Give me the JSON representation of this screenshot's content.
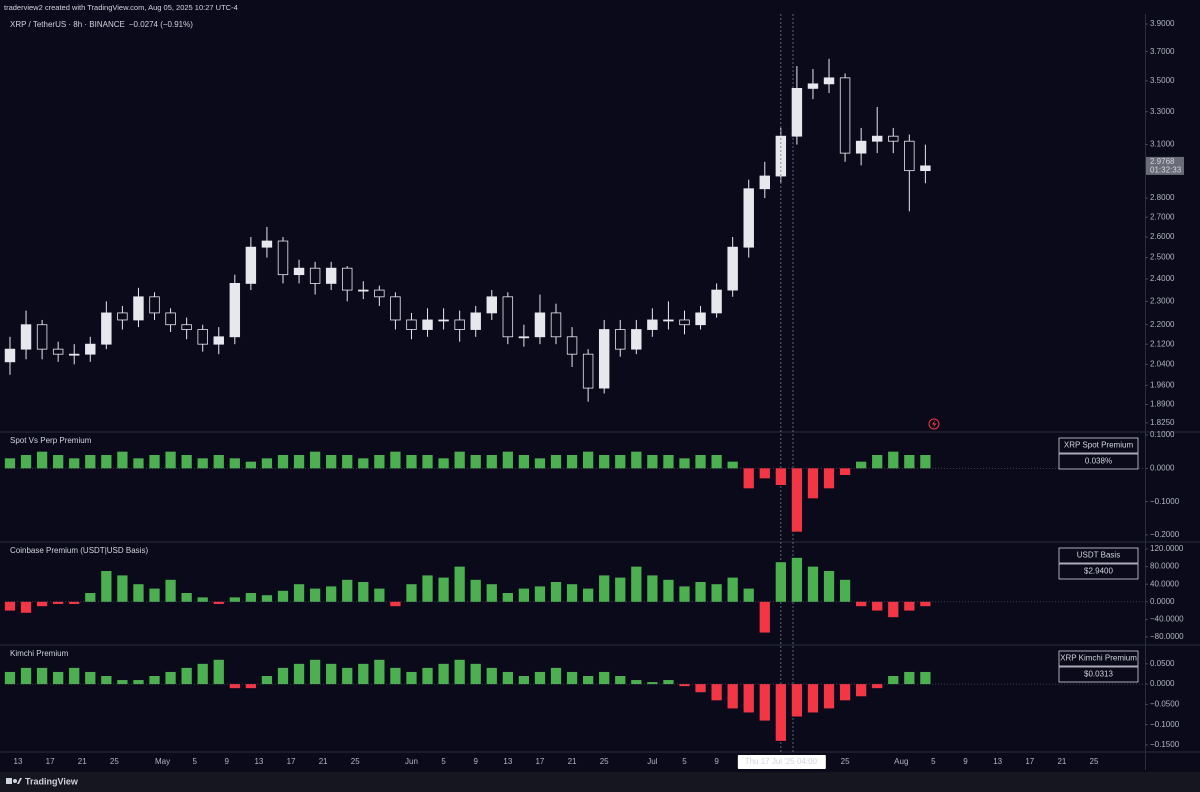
{
  "header": "traderview2 created with TradingView.com, Aug 05, 2025 10:27 UTC-4",
  "footer": "TradingView",
  "chart_data": [
    {
      "type": "candlestick",
      "title": "XRP / TetherUS · 8h · BINANCE",
      "subtitle": "−0.0274 (−0.91%)",
      "color": "#e6e8ee",
      "log": true,
      "last_price": 2.9768,
      "countdown": "01:32:33",
      "crosshair": {
        "value": 95,
        "label": "Thu 17 Jul '25  04:00"
      },
      "xlim": [
        -1.62,
        140.35
      ],
      "xticks": [
        {
          "value": 0,
          "label": "13"
        },
        {
          "value": 4,
          "label": "17"
        },
        {
          "value": 8,
          "label": "21"
        },
        {
          "value": 12,
          "label": "25"
        },
        {
          "value": 18,
          "label": "May"
        },
        {
          "value": 22,
          "label": "5"
        },
        {
          "value": 26,
          "label": "9"
        },
        {
          "value": 30,
          "label": "13"
        },
        {
          "value": 34,
          "label": "17"
        },
        {
          "value": 38,
          "label": "21"
        },
        {
          "value": 42,
          "label": "25"
        },
        {
          "value": 49,
          "label": "Jun"
        },
        {
          "value": 53,
          "label": "5"
        },
        {
          "value": 57,
          "label": "9"
        },
        {
          "value": 61,
          "label": "13"
        },
        {
          "value": 65,
          "label": "17"
        },
        {
          "value": 69,
          "label": "21"
        },
        {
          "value": 73,
          "label": "25"
        },
        {
          "value": 79,
          "label": "Jul"
        },
        {
          "value": 83,
          "label": "5"
        },
        {
          "value": 87,
          "label": "9"
        },
        {
          "value": 103,
          "label": "25"
        },
        {
          "value": 110,
          "label": "Aug"
        },
        {
          "value": 114,
          "label": "5"
        },
        {
          "value": 118,
          "label": "9"
        },
        {
          "value": 122,
          "label": "13"
        },
        {
          "value": 126,
          "label": "17"
        },
        {
          "value": 130,
          "label": "21"
        },
        {
          "value": 134,
          "label": "25"
        }
      ],
      "ylim": [
        1.797,
        3.975
      ],
      "yticks": [
        {
          "value": 3.9,
          "label": "3.9000"
        },
        {
          "value": 3.7,
          "label": "3.7000"
        },
        {
          "value": 3.5,
          "label": "3.5000"
        },
        {
          "value": 3.3,
          "label": "3.3000"
        },
        {
          "value": 3.1,
          "label": "3.1000"
        },
        {
          "value": 2.8,
          "label": "2.8000"
        },
        {
          "value": 2.7,
          "label": "2.7000"
        },
        {
          "value": 2.6,
          "label": "2.6000"
        },
        {
          "value": 2.5,
          "label": "2.5000"
        },
        {
          "value": 2.4,
          "label": "2.4000"
        },
        {
          "value": 2.3,
          "label": "2.3000"
        },
        {
          "value": 2.2,
          "label": "2.2000"
        },
        {
          "value": 2.12,
          "label": "2.1200"
        },
        {
          "value": 2.04,
          "label": "2.0400"
        },
        {
          "value": 1.96,
          "label": "1.9600"
        },
        {
          "value": 1.89,
          "label": "1.8900"
        },
        {
          "value": 1.825,
          "label": "1.8250"
        }
      ],
      "x": [
        -1,
        1,
        3,
        5,
        7,
        9,
        11,
        13,
        15,
        17,
        19,
        21,
        23,
        25,
        27,
        29,
        31,
        33,
        35,
        37,
        39,
        41,
        43,
        45,
        47,
        49,
        51,
        53,
        55,
        57,
        59,
        61,
        63,
        65,
        67,
        69,
        71,
        73,
        75,
        77,
        79,
        81,
        83,
        85,
        87,
        89,
        91,
        93,
        95,
        97,
        99,
        101,
        103,
        105,
        107,
        109,
        111,
        113
      ],
      "open": [
        2.05,
        2.1,
        2.2,
        2.1,
        2.08,
        2.08,
        2.12,
        2.25,
        2.22,
        2.32,
        2.25,
        2.2,
        2.18,
        2.12,
        2.15,
        2.38,
        2.55,
        2.58,
        2.42,
        2.45,
        2.38,
        2.45,
        2.35,
        2.35,
        2.32,
        2.22,
        2.18,
        2.22,
        2.22,
        2.18,
        2.25,
        2.32,
        2.15,
        2.15,
        2.25,
        2.15,
        2.08,
        1.95,
        2.18,
        2.1,
        2.18,
        2.22,
        2.22,
        2.2,
        2.25,
        2.35,
        2.55,
        2.85,
        2.92,
        3.15,
        3.45,
        3.48,
        3.52,
        3.05,
        3.12,
        3.15,
        3.12,
        2.95
      ],
      "high": [
        2.15,
        2.26,
        2.22,
        2.13,
        2.12,
        2.15,
        2.3,
        2.28,
        2.36,
        2.34,
        2.27,
        2.23,
        2.2,
        2.19,
        2.42,
        2.6,
        2.65,
        2.6,
        2.49,
        2.48,
        2.48,
        2.46,
        2.39,
        2.37,
        2.34,
        2.25,
        2.27,
        2.27,
        2.26,
        2.28,
        2.35,
        2.34,
        2.2,
        2.33,
        2.29,
        2.19,
        2.1,
        2.22,
        2.22,
        2.22,
        2.27,
        2.3,
        2.26,
        2.28,
        2.38,
        2.6,
        2.9,
        3.0,
        3.2,
        3.6,
        3.58,
        3.65,
        3.55,
        3.2,
        3.33,
        3.2,
        3.16,
        3.1
      ],
      "low": [
        2.0,
        2.06,
        2.06,
        2.05,
        2.04,
        2.05,
        2.1,
        2.18,
        2.19,
        2.22,
        2.17,
        2.14,
        2.09,
        2.08,
        2.12,
        2.35,
        2.5,
        2.38,
        2.38,
        2.33,
        2.35,
        2.3,
        2.31,
        2.28,
        2.18,
        2.14,
        2.15,
        2.18,
        2.13,
        2.15,
        2.22,
        2.12,
        2.11,
        2.12,
        2.12,
        2.03,
        1.9,
        1.93,
        2.07,
        2.08,
        2.15,
        2.18,
        2.16,
        2.18,
        2.23,
        2.32,
        2.5,
        2.8,
        2.88,
        3.1,
        3.38,
        3.42,
        3.0,
        2.98,
        3.05,
        3.05,
        2.73,
        2.88
      ],
      "close": [
        2.1,
        2.2,
        2.1,
        2.08,
        2.08,
        2.12,
        2.25,
        2.22,
        2.32,
        2.25,
        2.2,
        2.18,
        2.12,
        2.15,
        2.38,
        2.55,
        2.58,
        2.42,
        2.45,
        2.38,
        2.45,
        2.35,
        2.35,
        2.32,
        2.22,
        2.18,
        2.22,
        2.22,
        2.18,
        2.25,
        2.32,
        2.15,
        2.15,
        2.25,
        2.15,
        2.08,
        1.95,
        2.18,
        2.1,
        2.18,
        2.22,
        2.22,
        2.2,
        2.25,
        2.35,
        2.55,
        2.85,
        2.92,
        3.15,
        3.45,
        3.48,
        3.52,
        3.05,
        3.12,
        3.15,
        3.12,
        2.95,
        2.9768
      ]
    },
    {
      "type": "column",
      "title": "Spot Vs Perp Premium",
      "badge_title": "XRP Spot Premium",
      "badge_value": "0.038%",
      "up_color": "#4caf50",
      "down_color": "#f23645",
      "ylim": [
        -0.218,
        0.106
      ],
      "yticks": [
        {
          "value": 0.1,
          "label": "0.1000"
        },
        {
          "value": 0,
          "label": "0.0000"
        },
        {
          "value": -0.1,
          "label": "−0.1000"
        },
        {
          "value": -0.2,
          "label": "−0.2000"
        }
      ],
      "values": [
        0.03,
        0.04,
        0.05,
        0.04,
        0.03,
        0.04,
        0.04,
        0.05,
        0.03,
        0.04,
        0.05,
        0.04,
        0.03,
        0.04,
        0.03,
        0.02,
        0.03,
        0.04,
        0.04,
        0.05,
        0.04,
        0.04,
        0.03,
        0.04,
        0.05,
        0.04,
        0.04,
        0.03,
        0.05,
        0.04,
        0.04,
        0.05,
        0.04,
        0.03,
        0.04,
        0.04,
        0.05,
        0.04,
        0.04,
        0.05,
        0.04,
        0.04,
        0.03,
        0.04,
        0.04,
        0.02,
        -0.06,
        -0.03,
        -0.05,
        -0.19,
        -0.09,
        -0.06,
        -0.02,
        0.02,
        0.04,
        0.05,
        0.04,
        0.04
      ]
    },
    {
      "type": "column",
      "title": "Coinbase Premium (USDT|USD Basis)",
      "badge_title": "USDT Basis",
      "badge_value": "$2.9400",
      "up_color": "#4caf50",
      "down_color": "#f23645",
      "ylim": [
        -96,
        133.7
      ],
      "yticks": [
        {
          "value": 120,
          "label": "120.0000"
        },
        {
          "value": 80,
          "label": "80.0000"
        },
        {
          "value": 40,
          "label": "40.0000"
        },
        {
          "value": 0,
          "label": "0.0000"
        },
        {
          "value": -40,
          "label": "−40.0000"
        },
        {
          "value": -80,
          "label": "−80.0000"
        }
      ],
      "values": [
        -20,
        -25,
        -10,
        -5,
        -5,
        20,
        70,
        60,
        40,
        30,
        50,
        20,
        10,
        -5,
        10,
        20,
        15,
        25,
        40,
        30,
        35,
        50,
        45,
        30,
        -10,
        40,
        60,
        55,
        80,
        50,
        40,
        20,
        30,
        35,
        45,
        40,
        30,
        60,
        55,
        80,
        60,
        50,
        35,
        45,
        40,
        55,
        30,
        -70,
        90,
        100,
        80,
        70,
        50,
        -10,
        -20,
        -35,
        -20,
        -10
      ]
    },
    {
      "type": "column",
      "title": "Kimchi Premium",
      "badge_title": "XRP Kimchi Premium",
      "badge_value": "$0.0313",
      "up_color": "#4caf50",
      "down_color": "#f23645",
      "ylim": [
        -0.165,
        0.094
      ],
      "yticks": [
        {
          "value": 0.05,
          "label": "0.0500"
        },
        {
          "value": 0,
          "label": "0.0000"
        },
        {
          "value": -0.05,
          "label": "−0.0500"
        },
        {
          "value": -0.1,
          "label": "−0.1000"
        },
        {
          "value": -0.15,
          "label": "−0.1500"
        }
      ],
      "values": [
        0.03,
        0.04,
        0.04,
        0.03,
        0.04,
        0.03,
        0.02,
        0.01,
        0.01,
        0.02,
        0.03,
        0.04,
        0.05,
        0.06,
        -0.01,
        -0.01,
        0.02,
        0.04,
        0.05,
        0.06,
        0.05,
        0.04,
        0.05,
        0.06,
        0.04,
        0.03,
        0.04,
        0.05,
        0.06,
        0.05,
        0.04,
        0.03,
        0.02,
        0.03,
        0.04,
        0.03,
        0.02,
        0.03,
        0.02,
        0.01,
        0.005,
        0.01,
        -0.005,
        -0.02,
        -0.04,
        -0.06,
        -0.07,
        -0.09,
        -0.14,
        -0.08,
        -0.07,
        -0.06,
        -0.04,
        -0.03,
        -0.01,
        0.02,
        0.03,
        0.03
      ]
    }
  ]
}
